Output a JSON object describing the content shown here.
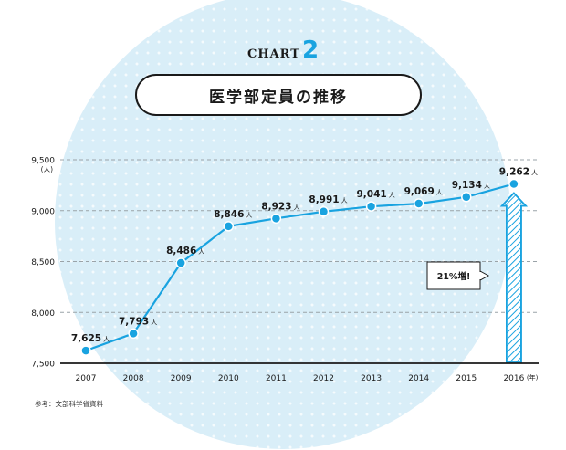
{
  "header": {
    "chart_word": "CHART",
    "chart_number": "2",
    "title": "医学部定員の推移"
  },
  "source_note": "参考：文部科学省資料",
  "colors": {
    "accent": "#19a3e0",
    "background_circle": "#d9eef8",
    "text": "#1a1a1a"
  },
  "chart_data": {
    "type": "line",
    "x": [
      "2007",
      "2008",
      "2009",
      "2010",
      "2011",
      "2012",
      "2013",
      "2014",
      "2015",
      "2016"
    ],
    "x_tick_labels": [
      "2007",
      "2008",
      "2009",
      "2010",
      "2011",
      "2012",
      "2013",
      "2014",
      "2015",
      "2016"
    ],
    "x_unit": "(年)",
    "series": [
      {
        "values": [
          7625,
          7793,
          8486,
          8846,
          8923,
          8991,
          9041,
          9069,
          9134,
          9262
        ]
      }
    ],
    "data_labels": [
      "7,625",
      "7,793",
      "8,486",
      "8,846",
      "8,923",
      "8,991",
      "9,041",
      "9,069",
      "9,134",
      "9,262"
    ],
    "data_label_unit": "人",
    "y_unit": "(人)",
    "y_ticks": [
      7500,
      8000,
      8500,
      9000,
      9500
    ],
    "y_tick_labels": [
      "7,500",
      "8,000",
      "8,500",
      "9,000",
      "9,500"
    ],
    "ylim": [
      7500,
      9500
    ],
    "grid": true,
    "grid_style": "dashed horizontal",
    "annotation": {
      "text": "21%増!",
      "from_value": 7500,
      "to_value": 9262,
      "x": "2016"
    }
  }
}
